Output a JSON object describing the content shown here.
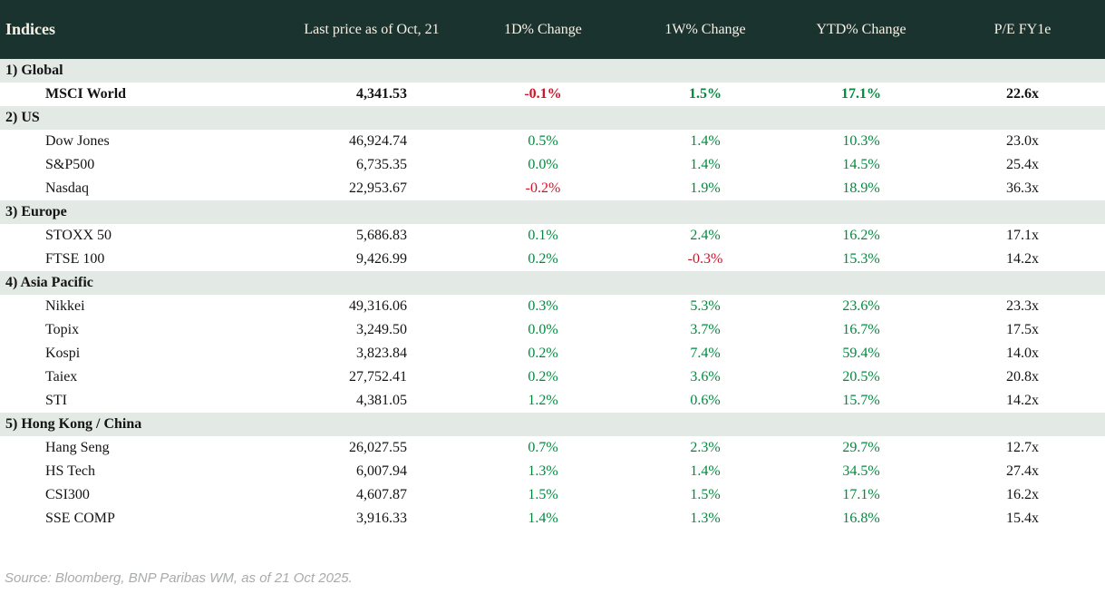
{
  "colors": {
    "header_bg": "#1b332f",
    "header_text": "#f6f2e8",
    "band_bg": "#e3e9e5",
    "positive": "#008a3e",
    "negative": "#cd1528",
    "text": "#141414",
    "source_text": "#a8abac"
  },
  "header": {
    "columns": [
      "Indices",
      "Last price as of Oct, 21",
      "1D% Change",
      "1W% Change",
      "YTD% Change",
      "P/E FY1e"
    ]
  },
  "sections": [
    {
      "label": "1) Global",
      "rows": [
        {
          "name": "MSCI World",
          "price": "4,341.53",
          "d1": "-0.1%",
          "w1": "1.5%",
          "ytd": "17.1%",
          "pe": "22.6x",
          "bold": true
        }
      ]
    },
    {
      "label": "2) US",
      "rows": [
        {
          "name": "Dow Jones",
          "price": "46,924.74",
          "d1": "0.5%",
          "w1": "1.4%",
          "ytd": "10.3%",
          "pe": "23.0x",
          "bold": false
        },
        {
          "name": "S&P500",
          "price": "6,735.35",
          "d1": "0.0%",
          "w1": "1.4%",
          "ytd": "14.5%",
          "pe": "25.4x",
          "bold": false
        },
        {
          "name": "Nasdaq",
          "price": "22,953.67",
          "d1": "-0.2%",
          "w1": "1.9%",
          "ytd": "18.9%",
          "pe": "36.3x",
          "bold": false
        }
      ]
    },
    {
      "label": "3) Europe",
      "rows": [
        {
          "name": "STOXX 50",
          "price": "5,686.83",
          "d1": "0.1%",
          "w1": "2.4%",
          "ytd": "16.2%",
          "pe": "17.1x",
          "bold": false
        },
        {
          "name": "FTSE 100",
          "price": "9,426.99",
          "d1": "0.2%",
          "w1": "-0.3%",
          "ytd": "15.3%",
          "pe": "14.2x",
          "bold": false
        }
      ]
    },
    {
      "label": "4) Asia Pacific",
      "rows": [
        {
          "name": "Nikkei",
          "price": "49,316.06",
          "d1": "0.3%",
          "w1": "5.3%",
          "ytd": "23.6%",
          "pe": "23.3x",
          "bold": false
        },
        {
          "name": "Topix",
          "price": "3,249.50",
          "d1": "0.0%",
          "w1": "3.7%",
          "ytd": "16.7%",
          "pe": "17.5x",
          "bold": false
        },
        {
          "name": "Kospi",
          "price": "3,823.84",
          "d1": "0.2%",
          "w1": "7.4%",
          "ytd": "59.4%",
          "pe": "14.0x",
          "bold": false
        },
        {
          "name": "Taiex",
          "price": "27,752.41",
          "d1": "0.2%",
          "w1": "3.6%",
          "ytd": "20.5%",
          "pe": "20.8x",
          "bold": false
        },
        {
          "name": "STI",
          "price": "4,381.05",
          "d1": "1.2%",
          "w1": "0.6%",
          "ytd": "15.7%",
          "pe": "14.2x",
          "bold": false
        }
      ]
    },
    {
      "label": "5) Hong Kong / China",
      "rows": [
        {
          "name": "Hang Seng",
          "price": "26,027.55",
          "d1": "0.7%",
          "w1": "2.3%",
          "ytd": "29.7%",
          "pe": "12.7x",
          "bold": false
        },
        {
          "name": "HS Tech",
          "price": "6,007.94",
          "d1": "1.3%",
          "w1": "1.4%",
          "ytd": "34.5%",
          "pe": "27.4x",
          "bold": false
        },
        {
          "name": "CSI300",
          "price": "4,607.87",
          "d1": "1.5%",
          "w1": "1.5%",
          "ytd": "17.1%",
          "pe": "16.2x",
          "bold": false
        },
        {
          "name": "SSE COMP",
          "price": "3,916.33",
          "d1": "1.4%",
          "w1": "1.3%",
          "ytd": "16.8%",
          "pe": "15.4x",
          "bold": false
        }
      ]
    }
  ],
  "footer": {
    "source": "Source: Bloomberg, BNP Paribas WM, as of 21 Oct 2025."
  }
}
